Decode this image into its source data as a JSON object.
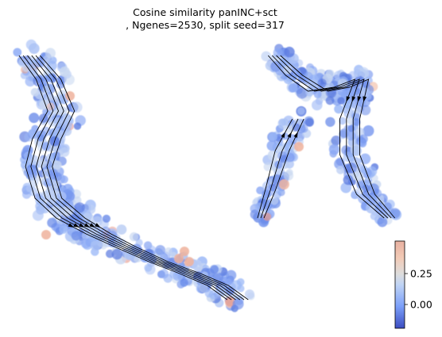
{
  "chart_data": {
    "type": "scatter",
    "title_line1": "Cosine similarity panINC+sct",
    "title_line2": ", Ngenes=2530, split seed=317",
    "xlabel": "",
    "ylabel": "",
    "axes_visible": false,
    "grid": false,
    "overlay": "velocity streamlines",
    "colormap": {
      "name": "coolwarm",
      "low_color": "#3b4cc0",
      "mid_color": "#dddddd",
      "high_color": "#b40426",
      "vmin": -0.05,
      "vmax": 0.5,
      "ticks": [
        0.25,
        0.0
      ],
      "tick_labels": [
        "0.25",
        "0.00"
      ]
    },
    "colors": {
      "stream": "#000000",
      "background": "#ffffff"
    }
  }
}
